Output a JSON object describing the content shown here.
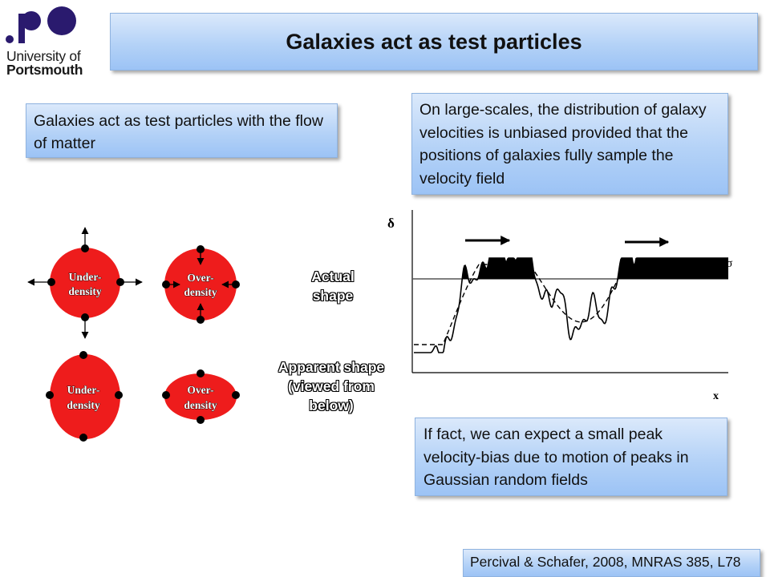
{
  "logo": {
    "line1": "University of",
    "line2": "Portsmouth",
    "color": "#2a1a6e"
  },
  "title": "Galaxies act as test particles",
  "box1": {
    "text": "Galaxies act as test particles with the flow of matter"
  },
  "box2": {
    "text": "On large-scales, the distribution of galaxy velocities is unbiased provided that the positions of galaxies fully sample the velocity field"
  },
  "box3": {
    "text": "If fact, we can expect a small peak velocity-bias due to motion of peaks in Gaussian random fields"
  },
  "citation": "Percival & Schafer, 2008, MNRAS 385, L78",
  "labels": {
    "actual": "Actual shape",
    "apparent": "Apparent shape (viewed from below)"
  },
  "shapes": {
    "under_density_1": "Under-",
    "under_density_2": "density",
    "over_density_1": "Over-",
    "over_density_2": "density",
    "fill_color": "#ee1c1c"
  },
  "plot": {
    "y_axis_label": "δ",
    "x_axis_label": "x",
    "threshold_label": "δ=νσ"
  }
}
